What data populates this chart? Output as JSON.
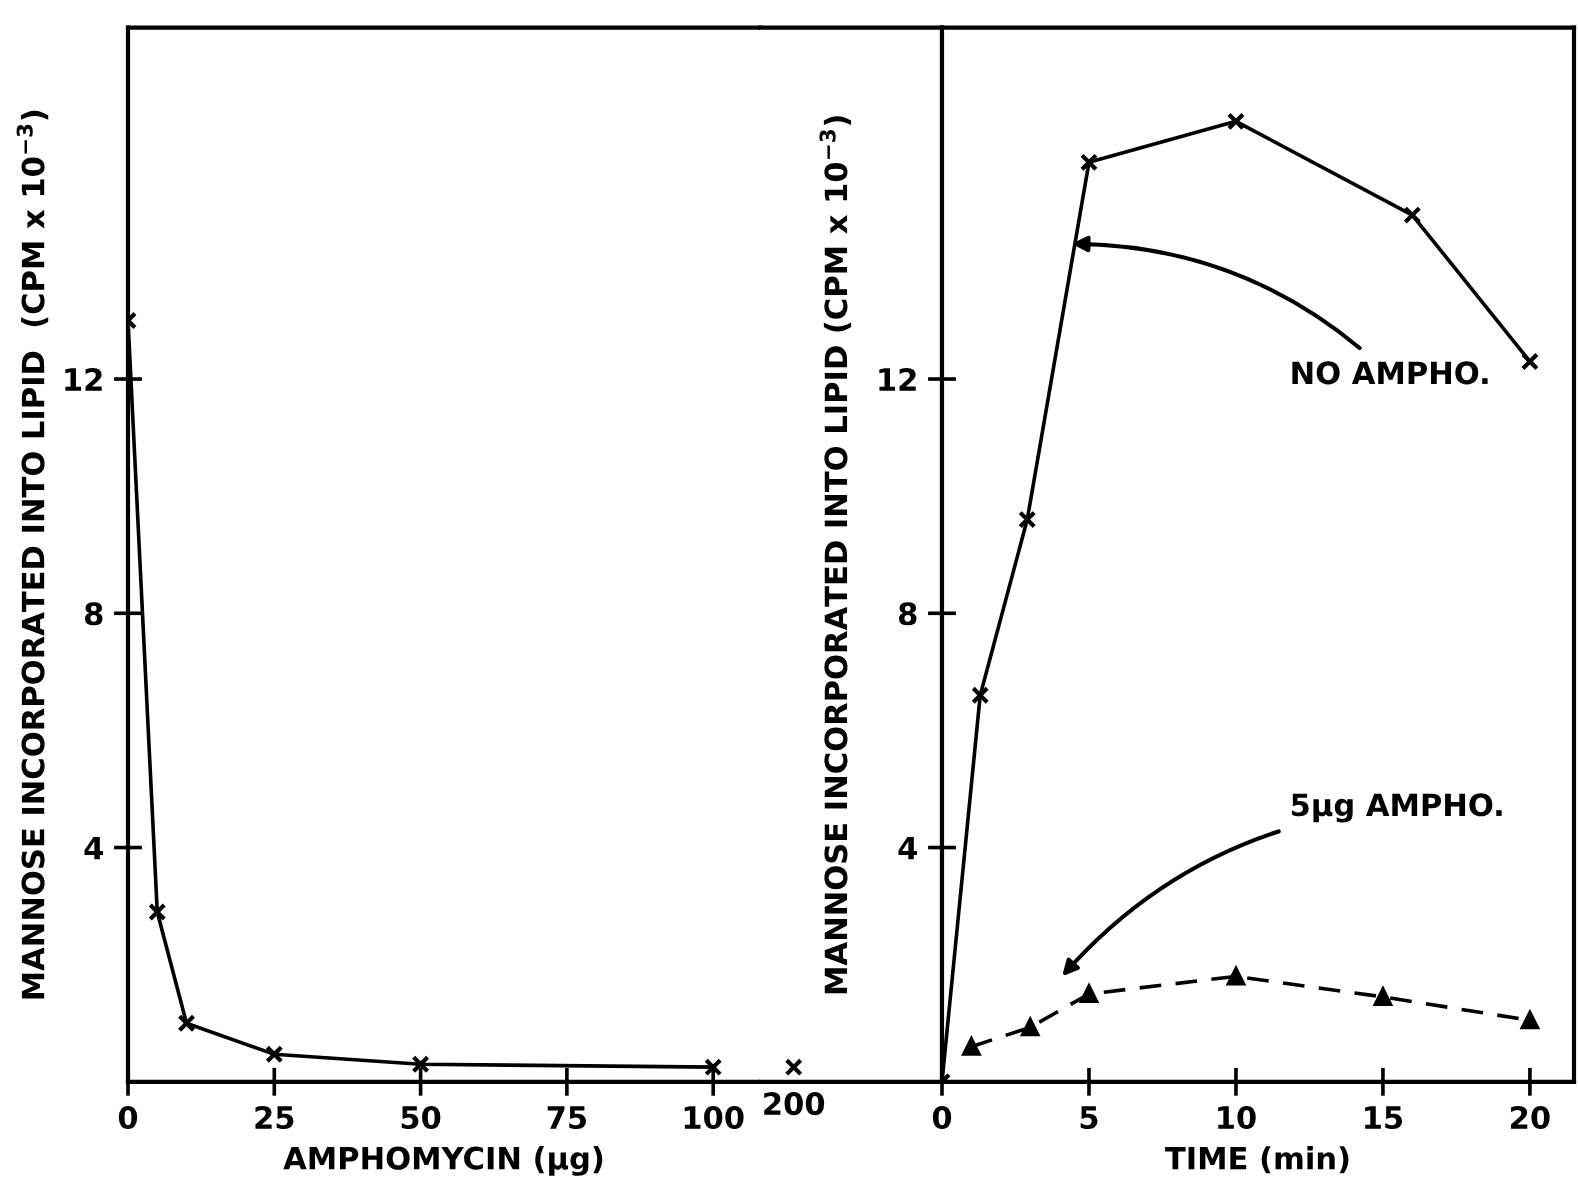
{
  "chart_data": [
    {
      "type": "line",
      "xlabel": "AMPHOMYCIN (µg)",
      "ylabel": "MANNOSE INCORPORATED INTO LIPID  (CPM x 10$^{−3}$)",
      "xlim": [
        0,
        108
      ],
      "xticks": [
        0,
        25,
        50,
        75,
        100
      ],
      "ylim": [
        0,
        18
      ],
      "yticks": [
        4,
        8,
        12
      ],
      "marker": "cross",
      "line_style": "solid",
      "grid": false,
      "legend": false,
      "series": [
        {
          "color": "#000000",
          "x": [
            0,
            5,
            10,
            25,
            50,
            100
          ],
          "values": [
            13.0,
            2.9,
            1.0,
            0.47,
            0.3,
            0.25
          ]
        }
      ]
    },
    {
      "type": "line",
      "categories": [
        "200"
      ],
      "ylim": [
        0,
        18
      ],
      "tick_labels": "x",
      "marker": "cross",
      "grid": false,
      "legend": false,
      "series": [
        {
          "color": "#000000",
          "values": [
            0.25
          ]
        }
      ]
    },
    {
      "type": "line",
      "xlabel": "TIME (min)",
      "ylabel": "MANNOSE INCORPORATED INTO LIPID (CPM x 10$^{−3}$)",
      "xlim": [
        0,
        21.5
      ],
      "xticks": [
        0,
        5,
        10,
        15,
        20
      ],
      "ylim": [
        0,
        18
      ],
      "yticks": [
        4,
        8,
        12
      ],
      "grid": false,
      "legend": false,
      "series": [
        {
          "color": "#000000",
          "marker": "cross",
          "line_style": "solid",
          "x": [
            0,
            1.3,
            2.9,
            5,
            10,
            16,
            20
          ],
          "values": [
            0,
            6.6,
            9.6,
            15.7,
            16.4,
            14.8,
            12.3
          ]
        },
        {
          "color": "#000000",
          "marker": "triangle",
          "line_style": "dashed",
          "x": [
            1,
            3,
            5,
            10,
            15,
            20
          ],
          "values": [
            0.6,
            0.93,
            1.5,
            1.8,
            1.45,
            1.05
          ]
        }
      ],
      "annotations": [
        "NO AMPHO.",
        "5µg AMPHO."
      ]
    }
  ]
}
